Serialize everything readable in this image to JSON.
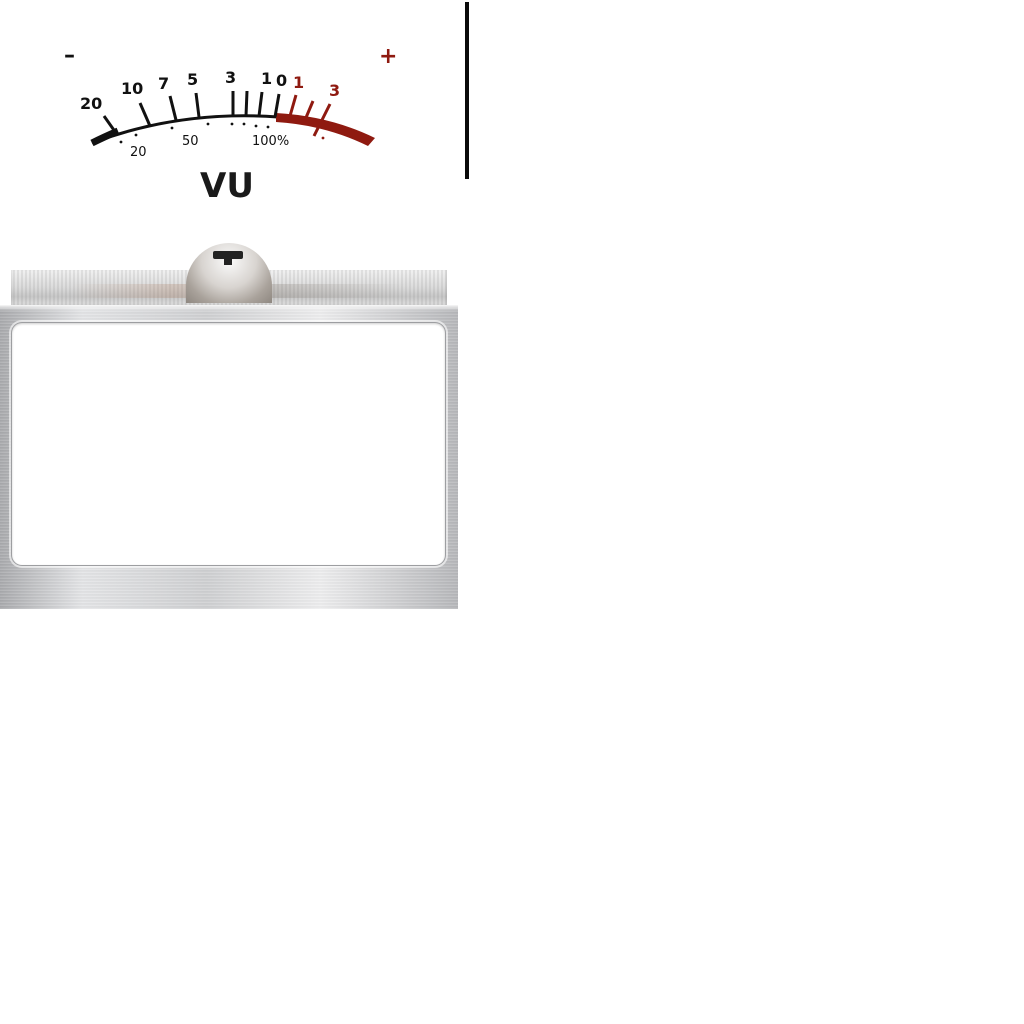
{
  "meter": {
    "minus_label": "–",
    "plus_label": "+",
    "vu_label": "VU",
    "db_scale_labels": [
      "20",
      "10",
      "7",
      "5",
      "3",
      "1",
      "0"
    ],
    "db_red_labels": [
      "1",
      "3"
    ],
    "percent_labels": [
      "20",
      "50",
      "100%"
    ]
  },
  "colors": {
    "scale_black": "#111111",
    "scale_red": "#8f1a10",
    "divider": "#0a0a0a"
  }
}
